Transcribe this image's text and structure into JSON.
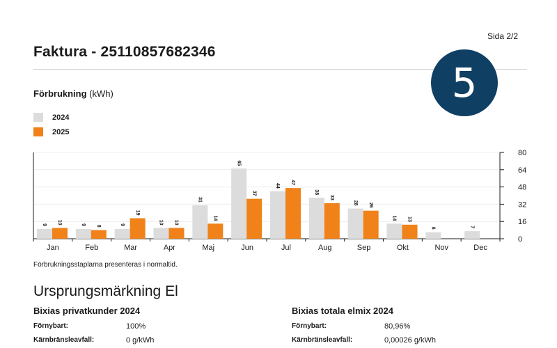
{
  "header": {
    "page": "Sida 2/2",
    "title": "Faktura - 25110857682346",
    "badge": "5"
  },
  "consumption": {
    "title_bold": "Förbrukning",
    "title_unit": " (kWh)",
    "footnote": "Förbrukningsstaplarna presenteras i normaltid."
  },
  "colors": {
    "series_2024": "#dcdcdc",
    "series_2025": "#f08219",
    "badge_bg": "#0f3f63"
  },
  "chart_data": {
    "type": "bar",
    "title": "Förbrukning (kWh)",
    "xlabel": "",
    "ylabel": "kWh",
    "categories": [
      "Jan",
      "Feb",
      "Mar",
      "Apr",
      "Maj",
      "Jun",
      "Jul",
      "Aug",
      "Sep",
      "Okt",
      "Nov",
      "Dec"
    ],
    "series": [
      {
        "name": "2024",
        "values": [
          9,
          9,
          9,
          10,
          31,
          65,
          44,
          38,
          28,
          14,
          6,
          7
        ]
      },
      {
        "name": "2025",
        "values": [
          10,
          8,
          19,
          10,
          14,
          37,
          47,
          33,
          26,
          13,
          null,
          null
        ]
      }
    ],
    "ylim": [
      0,
      80
    ],
    "yticks": [
      0,
      16,
      32,
      48,
      64,
      80
    ],
    "legend": "top-left"
  },
  "origin": {
    "title": "Ursprungsmärkning El",
    "left": {
      "heading": "Bixias privatkunder 2024",
      "rows": [
        {
          "label": "Förnybart:",
          "value": "100%"
        },
        {
          "label": "Kärnbränsleavfall:",
          "value": "0 g/kWh"
        }
      ]
    },
    "right": {
      "heading": "Bixias totala elmix 2024",
      "rows": [
        {
          "label": "Förnybart:",
          "value": "80,96%"
        },
        {
          "label": "Kärnbränsleavfall:",
          "value": "0,00026 g/kWh"
        }
      ]
    }
  }
}
